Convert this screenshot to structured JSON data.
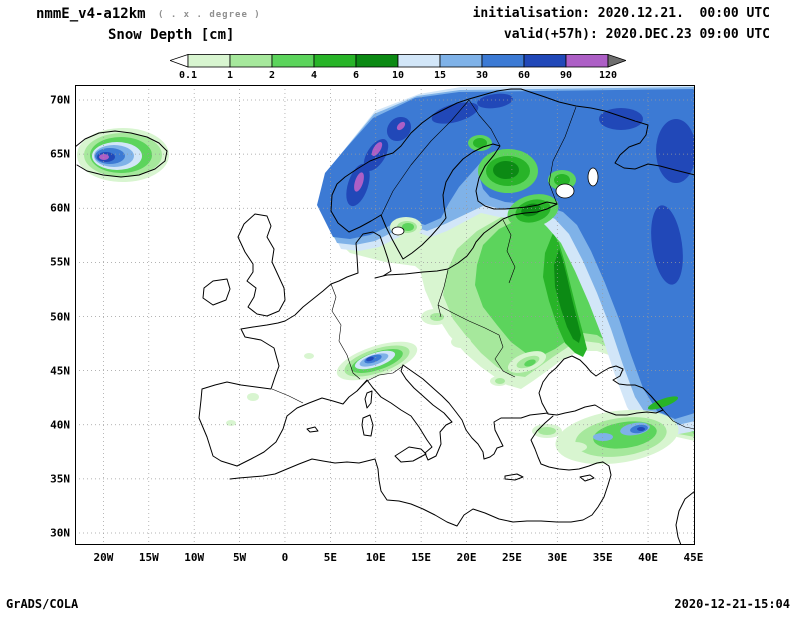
{
  "header": {
    "model": "nmmE_v4-a12km",
    "resolution": "( . x . degree )",
    "variable": "Snow Depth [cm]",
    "initialisation": "initialisation: 2020.12.21.  00:00 UTC",
    "valid": "valid(+57h): 2020.DEC.23 09:00 UTC"
  },
  "legend": {
    "boundary_labels": [
      "0.1",
      "1",
      "2",
      "4",
      "6",
      "10",
      "15",
      "30",
      "60",
      "90",
      "120"
    ],
    "colors": [
      "#ffffff",
      "#d8f5d0",
      "#a6e89c",
      "#5cd45c",
      "#28b428",
      "#0c8a14",
      "#d2e6f8",
      "#7fb2e8",
      "#3c7ad4",
      "#2148b8",
      "#ad5fc6",
      "#6e6e6e"
    ]
  },
  "map": {
    "lat_labels": [
      "70N",
      "65N",
      "60N",
      "55N",
      "50N",
      "45N",
      "40N",
      "35N",
      "30N"
    ],
    "lon_labels": [
      "20W",
      "15W",
      "10W",
      "5W",
      "0",
      "5E",
      "10E",
      "15E",
      "20E",
      "25E",
      "30E",
      "35E",
      "40E",
      "45E"
    ]
  },
  "footer": {
    "left": "GrADS/COLA",
    "right": "2020-12-21-15:04"
  }
}
